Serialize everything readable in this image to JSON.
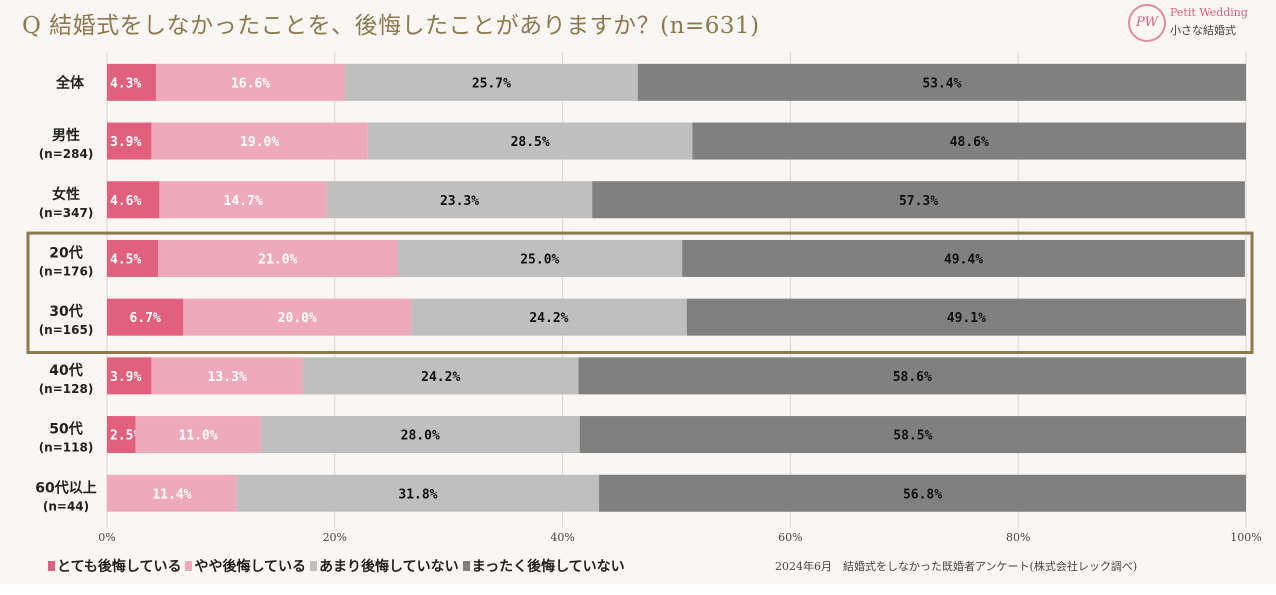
{
  "title": "Q 結婚式をしなかったことを、後悔したことがありますか？(n=631)",
  "logo": {
    "mark": "PW",
    "line1": "Petit Wedding",
    "line2": "小さな結婚式"
  },
  "source": "2024年6月　結婚式をしなかった既婚者アンケート(株式会社レック調べ)",
  "chart_data": {
    "type": "bar",
    "orientation": "horizontal-stacked-100",
    "title": "Q 結婚式をしなかったことを、後悔したことがありますか？(n=631)",
    "categories": [
      {
        "label": "全体",
        "n": ""
      },
      {
        "label": "男性",
        "n": "(n=284)"
      },
      {
        "label": "女性",
        "n": "(n=347)"
      },
      {
        "label": "20代",
        "n": "(n=176)"
      },
      {
        "label": "30代",
        "n": "(n=165)"
      },
      {
        "label": "40代",
        "n": "(n=128)"
      },
      {
        "label": "50代",
        "n": "(n=118)"
      },
      {
        "label": "60代以上",
        "n": "(n=44)"
      }
    ],
    "series": [
      {
        "name": "とても後悔している",
        "color": "#e0607e",
        "label_color": "#ffffff",
        "values": [
          4.3,
          3.9,
          4.6,
          4.5,
          6.7,
          3.9,
          2.5,
          0.0
        ]
      },
      {
        "name": "やや後悔している",
        "color": "#eeaabb",
        "label_color": "#ffffff",
        "values": [
          16.6,
          19.0,
          14.7,
          21.0,
          20.0,
          13.3,
          11.0,
          11.4
        ]
      },
      {
        "name": "あまり後悔していない",
        "color": "#bfbfbf",
        "label_color": "#111111",
        "values": [
          25.7,
          28.5,
          23.3,
          25.0,
          24.2,
          24.2,
          28.0,
          31.8
        ]
      },
      {
        "name": "まったく後悔していない",
        "color": "#808080",
        "label_color": "#111111",
        "values": [
          53.4,
          48.6,
          57.3,
          49.4,
          49.1,
          58.6,
          58.5,
          56.8
        ]
      }
    ],
    "xlim": [
      0,
      100
    ],
    "xticks": [
      "0%",
      "20%",
      "40%",
      "60%",
      "80%",
      "100%"
    ],
    "grid": true,
    "legend": "bottom-left",
    "highlight": {
      "categories": [
        "20代",
        "30代"
      ],
      "color": "#8c7a4e"
    }
  }
}
